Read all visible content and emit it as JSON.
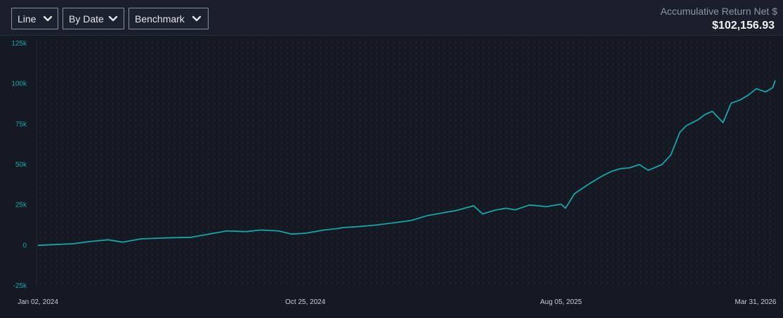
{
  "toolbar": {
    "chart_type_label": "Line",
    "grouping_label": "By Date",
    "benchmark_label": "Benchmark"
  },
  "summary": {
    "label": "Accumulative Return Net $",
    "value": "$102,156.93"
  },
  "colors": {
    "line": "#17a5a5",
    "axis_label": "#1aa3a3",
    "date_label": "#c9ccd3",
    "background": "#151923",
    "toolbar_bg": "#1a1f2b"
  },
  "chart_data": {
    "type": "line",
    "title": "",
    "xlabel": "",
    "ylabel": "",
    "ylim": [
      -25000,
      125000
    ],
    "yticks": [
      -25000,
      0,
      25000,
      50000,
      75000,
      100000,
      125000
    ],
    "ytick_labels": [
      "-25k",
      "0",
      "25k",
      "50k",
      "75k",
      "100k",
      "125k"
    ],
    "x_start": "2024-01-02",
    "x_end": "2026-03-31",
    "xtick_labels": [
      "Jan 02, 2024",
      "Oct 25, 2024",
      "Aug 05, 2025",
      "Mar 31, 2026"
    ],
    "xtick_dates": [
      "2024-01-02",
      "2024-10-25",
      "2025-08-05",
      "2026-03-31"
    ],
    "grid": "dotted",
    "legend": "none",
    "series": [
      {
        "x": [
          "2024-01-02",
          "2024-01-20",
          "2024-02-10",
          "2024-03-01",
          "2024-03-20",
          "2024-04-05",
          "2024-04-25",
          "2024-05-15",
          "2024-06-01",
          "2024-06-20",
          "2024-07-10",
          "2024-07-30",
          "2024-08-20",
          "2024-09-05",
          "2024-09-25",
          "2024-10-10",
          "2024-10-25",
          "2024-11-15",
          "2024-12-01",
          "2024-12-05",
          "2024-12-20",
          "2025-01-10",
          "2025-02-01",
          "2025-02-20",
          "2025-03-10",
          "2025-03-25",
          "2025-04-10",
          "2025-04-30",
          "2025-05-10",
          "2025-05-25",
          "2025-06-05",
          "2025-06-15",
          "2025-07-01",
          "2025-07-20",
          "2025-08-05",
          "2025-08-10",
          "2025-08-20",
          "2025-09-05",
          "2025-09-20",
          "2025-10-01",
          "2025-10-10",
          "2025-10-20",
          "2025-10-31",
          "2025-11-10",
          "2025-11-25",
          "2025-12-05",
          "2025-12-15",
          "2025-12-22",
          "2026-01-05",
          "2026-01-12",
          "2026-01-20",
          "2026-02-01",
          "2026-02-10",
          "2026-02-20",
          "2026-03-01",
          "2026-03-10",
          "2026-03-20",
          "2026-03-28",
          "2026-03-31"
        ],
        "y": [
          0,
          500,
          1000,
          2500,
          3500,
          2000,
          4000,
          4500,
          4800,
          5000,
          7000,
          9000,
          8500,
          9500,
          9000,
          7000,
          7500,
          9500,
          10500,
          11000,
          11500,
          12500,
          14000,
          15500,
          18500,
          20000,
          21500,
          24500,
          19500,
          22000,
          23000,
          22000,
          25000,
          24000,
          25500,
          23000,
          32000,
          38000,
          43000,
          46000,
          47500,
          48000,
          50000,
          46500,
          50000,
          56000,
          70000,
          74000,
          78000,
          81000,
          83000,
          76000,
          88000,
          90000,
          93000,
          97000,
          95000,
          97500,
          102157
        ]
      }
    ]
  }
}
